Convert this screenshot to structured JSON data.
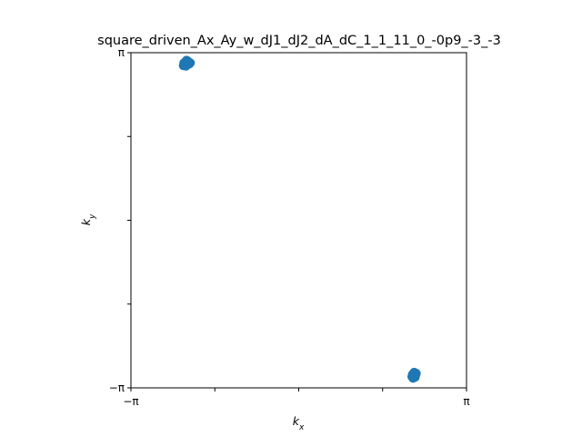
{
  "chart_data": {
    "type": "scatter",
    "title": "square_driven_Ax_Ay_w_dJ1_dJ2_dA_dC_1_1_11_0_-0p9_-3_-3",
    "xlabel": "k_x",
    "ylabel": "k_y",
    "xlim": [
      -3.14159,
      3.14159
    ],
    "ylim": [
      -3.14159,
      3.14159
    ],
    "x_ticks": [
      {
        "value": -3.14159,
        "label": "−π"
      },
      {
        "value": -1.5708,
        "label": ""
      },
      {
        "value": 0,
        "label": ""
      },
      {
        "value": 1.5708,
        "label": ""
      },
      {
        "value": 3.14159,
        "label": "π"
      }
    ],
    "y_ticks": [
      {
        "value": -3.14159,
        "label": "−π"
      },
      {
        "value": -1.5708,
        "label": ""
      },
      {
        "value": 0,
        "label": ""
      },
      {
        "value": 1.5708,
        "label": ""
      },
      {
        "value": 3.14159,
        "label": "π"
      }
    ],
    "grid": false,
    "marker_color": "#1f77b4",
    "series": [
      {
        "x": [
          -2.16,
          -2.14,
          -2.12,
          -2.1,
          -2.08,
          -2.05,
          -2.03,
          -2.13,
          -2.11,
          -2.09,
          -2.07,
          -2.15
        ],
        "y": [
          2.9,
          2.94,
          2.97,
          3.0,
          2.96,
          2.93,
          2.95,
          2.92,
          2.89,
          2.91,
          2.98,
          2.95
        ]
      },
      {
        "x": [
          2.12,
          2.14,
          2.16,
          2.18,
          2.2,
          2.15,
          2.17,
          2.13,
          2.19,
          2.16,
          2.18,
          2.14
        ],
        "y": [
          -2.93,
          -2.9,
          -2.88,
          -2.86,
          -2.87,
          -2.95,
          -2.92,
          -2.89,
          -2.9,
          -2.85,
          -2.94,
          -2.96
        ]
      }
    ]
  }
}
